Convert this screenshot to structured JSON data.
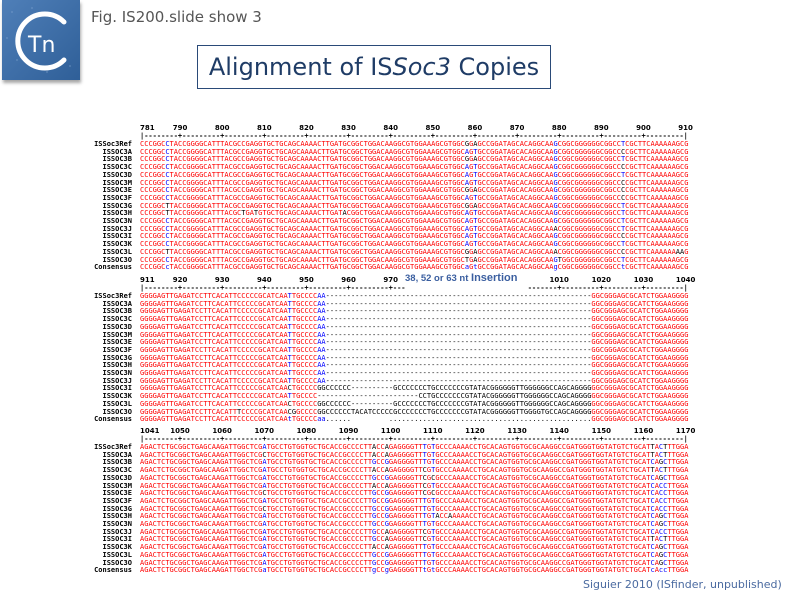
{
  "header": {
    "logo_text": "Tn",
    "fig_label": "Fig. IS200.slide show 3",
    "title_prefix": "Alignment of IS",
    "title_italic": "Soc3",
    "title_suffix": " Copies"
  },
  "colors": {
    "high_consensus": "#ff0000",
    "low_consensus": "#0000ff",
    "neutral": "#000000",
    "title": "#1f3c66",
    "footer": "#4a6aa0"
  },
  "sequence_names": [
    "ISSoc3Ref",
    "ISSOC3A",
    "ISSOC3B",
    "ISSOC3C",
    "ISSOC3D",
    "ISSOC3M",
    "ISSOC3E",
    "ISSOC3F",
    "ISSOC3G",
    "ISSOC3H",
    "ISSOC3N",
    "ISSOC3J",
    "ISSOC3I",
    "ISSOC3K",
    "ISSOC3L",
    "ISSOC3O"
  ],
  "consensus_label": "Consensus",
  "blocks": [
    {
      "start": 781,
      "end": 910,
      "ticks": [
        781,
        790,
        800,
        810,
        820,
        830,
        840,
        850,
        860,
        870,
        880,
        890,
        900,
        910
      ],
      "sequences": [
        "CCCGGCCTACCGGGGCATTTACGCCGAGGTGCTGCAGCAAAACTTGATGCGGCTGGACAAGGCGTGGAAAGCGTGGCGGAGCCGGATAGCACAGGCAAGCGGCGGGGGGCGGCCTCGCTTCAAAAAAGCG",
        "CCCGGCCTACCGGGGCATTTACGCCGAGGTGCTGCAGCAAAACTTGATGCGGCTGGACAAGGCGTGGAAAGCGTGGCAGTGCCGGATAGCACAGGCAAGCGGCGGGGGGCGGCCCCGCTTCAAAAAAGCG",
        "CCCGGCCTACCGGGGCATTTACGCCGAGGTGCTGCAGCAAAACTTGATGCGGCTGGACAAGGCGTGGAAAGCGTGGCGGAGCCGGATAGCACAGGCAAGCGGCGGGGGGCGGCCTCGCTTCAAAAAAGCG",
        "CCCGGCCTACCGGGGCATTTACGCCGAGGTGCTGCAGCAAAACTTGATGCGGCTGGACAAGGCGTGGAAAGCGTGGCAGTGCCGGATAGCACAGGCAAGCGGCGGGGGGCGGCCCCGCTTCAAAAAAGCG",
        "CCCGGCCTACCGGGGCATTTACGCCGAGGTGCTGCAGCAAAACTTGATGCGGCTGGACAAGGCGTGGAAAGCGTGGCAGTGCCGGATAGCACAGGCAAGCGGCGGGGGGCGGCCTCGCTTCAAAAAAGCG",
        "CCCGGCCTACCGGGGCATTTACGCCGAGGTGCTGCAGCAAAACTTGATGCGGCTGGACAAGGCGTGGAAAGCGTGGCAGTGCCGGATAGCACAGGCAAGCGGCGGGGGGCGGCCCCGCTTCAAAAAAGCG",
        "CCCGGCCTACCGGGGCATTTACGCCGAGGTGCTGCAGCAAAACTTGATGCGGCTGGACAAGGCGTGGAAAGCGTGGCGGAGCCGGATAGCACAGGCAAGCGGCGGGGGGCGGCCCCGCTTCAAAAAAGCG",
        "CCCGGCCTACCGGGGCATTTACGCCGAGGTGCTGCAGCAAAACTTGATGCGGCTGGACAAGGCGTGGAAAGCGTGGCAGTGCCGGATAGCACAGGCAAGCGGCGGGGGGCGGCCCCGCTTCAAAAAAGCG",
        "CCCGGCTTACCGGGGCATTTACGCCGAGGTGCTGCAGCAAAACTTGATGCGGCTGGACAAGGCGTGGAAAGCGTGGCGGAGCCGGATAGCACAGGCAAGCGGCGGGGGGCGGCCTCGCTTCAAAAAAGCG",
        "CCCGGCTTACCGGGGCATTTACGCTGATGTGCTGCAGCAAAACTTGATACGGCTGGACAAGGCGTGGAAAGCGTGGCAGTGCCGGATAGCACAGGCAAGCGGCGGGGGGCGGCCTCGCTTCAAAAAAGCG",
        "CCCGGCCTACCGGGGCATTTACGCCGAGGTGCTGCAGCAAAACTTGATGCGGCTGGACAAGGCGTGGAAAGCGTGGCAGTGCCGGATAGCACAGGCAAGCGGCGGGGGGCGGCCTCGCTTCAAAAAAGCG",
        "CCCGGCCTACCGGGGCATTTACGCCGAGGTGCTGCAGCAAAACTTGATGCGGCTGGACAAGGCGTGGAAAGCGTGGCAGTGCCGGATAGCACAGGCAAACGGCGGGGGGCGGCCTCGCTTCAAAAAAGCG",
        "CCCGGCCTACCGGGGCATTTACGCCGAGGTGCTGCAGCAAAACTTGATGCGGCTGGACAAGGCGTGGAAAGCGTGGCAGTGCCGGATAGCACAGGCAAGCGGCGGGGGGCGGCCCCGCTTCAAAAAAGCG",
        "CCCGGCCTACCGGGGCATTTACGCCGAGGTGCTGCAGCAAAACTTGATGCGGCTGGACAAGGCGTGGAAAGCGTGGCAGTGCCGGATAGCACAGGCAAGCGGCGGGGGGCGGCCTCGCTTCAAAAAAGCG",
        "CCCGGCTTACCGGGGCATTTACGCCGAGGTGCTGCAGCAAAACTTGATGCGGCTGGACAAGGCGTGGAAAGCGTGGCGGAGCCGGATAGCACAGGCAAACGGCGGGGGGCGGCCCCGCTTCAAAAAAAAG",
        "CCCGGCCTACCGGGGCATTTACGCCGAGGTGCTGCAGCAAAACTTGATGCGGCTGGACAAGGCGTGGAAAGCGTGGCTGAGCCGGATAGCACAGGCAAGTGGCGGGGGGCGGCCTCGCTTCAAAAAAGCG"
      ],
      "consensus": "CCCGGCcTACCGGGGCATTTACGCCGAGGTGCTGCAGCAAAACTTGATGCGGCTGGACAAGGCGTGGAAAGCGTGGCaGtGCCGGATAGCACAGGCAAgCGGCGGGGGGCGGCCtCGCTTCAAAAAAGCG"
    },
    {
      "start": 911,
      "end": 1040,
      "ticks": [
        911,
        920,
        930,
        940,
        950,
        960,
        970,
        1010,
        1020,
        1030,
        1040
      ],
      "ruler_gap": [
        974,
        1002
      ],
      "annotation": {
        "count_text": "38, 52 or 63 nt ",
        "word": "Insertion"
      },
      "sequences": [
        "GGGGAGTTGAGATCCTTCACATTCCCCCGCATCAATTGCCCCAA---------------------------------------------------------------GGCGGGAGCGCATCTGGAAGGGG",
        "GGGGAGTTGAGATCCTTCACATTCCCCCGCATCAATTGCCCCAA---------------------------------------------------------------GGCGGGAGCGCATCTGGAAGGGG",
        "GGGGAGTTGAGATCCTTCACATTCCCCCGCATCAATTGCCCCAA---------------------------------------------------------------GGCGGGAGCGCATCTGGAAGGGG",
        "GGGGAGTTGAGATCCTTCACATTCCCCCGCATCAATTGCCCCAA---------------------------------------------------------------GGCGGGAGCGCATCTGGAAGGGG",
        "GGGGAGTTGAGATCCTTCACATTCCCCCGCATCAATTGCCCCAA---------------------------------------------------------------GGCGGGAGCGCATCTGGAAGGGG",
        "GGGGAGTTGAGATCCTTCACATTCCCCCGCATCAATTGCCCCAA---------------------------------------------------------------GGCGGGAGCGCATCTGGAAGGGG",
        "GGGGAGTTGAGATCCTTCACATTCCCCCGCATCAATTGCCCCAA---------------------------------------------------------------GGCGGGAGCGCATCTGGAAGGGG",
        "GGGGAGTTGAGATCCTTCACATTCCCCCGCATCAATTGCCCCAA---------------------------------------------------------------GGCGGGAGCGCATCTGGAAGGGG",
        "GGGGAGTTGAGATCCTTCACATTCCCCCGCATCAATTGCCCCAA---------------------------------------------------------------GGCGGGAGCGCATCTGGAAGGGG",
        "GGGGAGTTGAGATCCTTCACATTCCCCCGCATCAATTGCCCCAA---------------------------------------------------------------GGCGGGAGCGCATCTGGAAGGGG",
        "GGGGAGTTGAGATCCTTCACATTCCCCCGCATCAATTGCCCCAA---------------------------------------------------------------GGCGGGAGCGCATCTGGAAGGGG",
        "GGGGAGTTGAGATCCTTCACATTCCCCCGCATCAATTGCCCCAA---------------------------------------------------------------GGCGGGAGCGCATCTGGAAGGGG",
        "GGGGAGTTGAGATCCTTCACATTCCCCCGCATCAACTGCCCCGGCCCCCC----------GCCCCCCCTGCCCCCCCGTATACGGGGGGTTGGGGGGCCAGCAGGGGGGCGGGAGCGCATCTGGAAGGGG",
        "GGGGAGTTGAGATCCTTCACATTCCCCCGCATCAATTGCCCC------------------------CCTGCCCCCCCGTATACGGGGGGTTGGGGGGCCAGCAGGGGGGCGGGAGCGCATCTGGAAGGGG",
        "GGGGAGTTGAGATCCTTCACATTCCCCCGCATCAACTGCCCCGGCCCCCC----------GCCCCCCCTGCCCCCCCGTATACGGGGGGTTGGGGGGCCAGCAGGGGGGCGGGAGCGCATCTGGAAGGGG",
        "GGGGAGTTGAGATCCTTCACATTTCCCCGCATCAACGGCCCCGGCCCCCCTACATCCCCCGCCCCCCCTGCCCCCCCGTATACGGGGGGTTGGGGTGCCAGCAGGGGGGCGGGAGCGCATCTGGAAGGGG"
      ],
      "consensus": "GGGGAGTTGAGATCCTTCACATTCCCCCGCATCAAtTGCCCCaa......         ................................................GGCGGGAGCGCATCTGGAAGGGG"
    },
    {
      "start": 1041,
      "end": 1170,
      "ticks": [
        1041,
        1050,
        1060,
        1070,
        1080,
        1090,
        1100,
        1110,
        1120,
        1130,
        1140,
        1150,
        1160,
        1170
      ],
      "sequences": [
        "AGACTCTGCGGCTGAGCAAGATTGGCTCGATGCCTGTGGTGCTGCACCGCCCCTTACCAGAGGGGTTTGTGCCCAAAACCTGCACAGTGGTGCGCAAGGCCGATGGGTGGTATGTCTGCATTACTTTGGA",
        "AGACTCTGCGGCTGAGCAAGATTGGCTCGCTGCCTGTGGTGCTGCACCGCCCCTTACCAGAGGGGTTTGTGCCCAAAACCTGCACAGTGGTGCGCAAGGCCGATGGGTGGTATGTCTGCATTACTTTGGA",
        "AGACTCTGCGGCTGAGCAAGATTGGCTCGATGCCTGTGGTGCTGCACCGCCCCTTGCCGGAGGGGTTTGTGCCCAAAACCTGCACAGTGGTGCGCAAGGCCGATGGGTGGTATGTCTGCATCAGCTTGGA",
        "AGACTCTGCGGCTGAGCAAGATTGGCTCGATGCCTGTGGTGCTGCACCGCCCCTTACCAGAGGGGTTCGTGCCCAAAACCTGCACAGTGGTGCGCAAGGCCGATGGGTGGTATGTCTGCATTACTTTGGA",
        "AGACTCTGCGGCTGAGCAAGATTGGCTCGATGCCTGTGGTGCTGCACCGCCCCTTGCCGGAGGGGTTCGCGCCCAAAACCTGCACAGTGGTGCGCAAGGCCGATGGGTGGTATGTCTGCATCAGCTTGGA",
        "AGACTCTGCGGCTGAGCAAGATTGGCTCGATGCCTGTGGTGCTGCACCGCCCCTTACCAGAGGGGTTCGTGCCCAAAACCTGCACAGTGGTGCGCAAGGCCGATGGGTGGTATGTCTGCATCACCTTGGA",
        "AGACTCTGCGGCTGAGCAAGATTGGCTCGCTGCCTGTGGTGCTGCACCGCCCCTTGCCGGAGGGGTTCGCGCCCAAAACCTGCACAGTGGTGCGCAAGGCCGATGGGTGGTATGTCTGCATCACCTTGGA",
        "AGACTCTGCGGCTGAGCAAGATTGGCTCGATGCCTGTGGTGCTGCACCGCCCCTTGCCGGAGGGGTTTGTGCCCAAAACCTGCACAGTGGTGCGCAAGGCCGATGGGTGGTATGTCTGCATCACCTTGGA",
        "AGACTCTGCGGCTGAGCAAGATTGGCTCGCTGCCTGTGGTGCTGCACCGCCCCTTGCCGGAGGGGTTTGTGCCCAAAACCTGCACAGTGGTGCGCAAGGCCGATGGGTGGTATGTCTGCATCACCTTGGA",
        "AGACTCTGCGGCTGAGCAAGATTGGCTCGATGCCTGTGGTGCTGCACCGCCCCTTGCCGGAGGGGTTTGTACCAAAAACCTGCACAGTGGTGCGCAAGGCCGATGGGTGGTATGTCTGCATCAGCTTGGA",
        "AGACTCTGCGGCTGAGCAAGATTGGCTCGATGCCTGTGGTGCTGCACCGCCCCTTGCCGGAGGGGTTTGTGCCCAAAACCTGCACAGTGGTGCGCAAGGCCGATGGGTGGTATGTCTGCATCAGCTTGGA",
        "AGACTCTGCGGCTGAGCAAGATTGGCTCGATGCCTGTGGTGCTGCACCGCCCCTTGCCAGAGGGGTTCGTGCCCAAAACCTGCACAGTGGTGCGCAAGGCCGATGGGTGGTATGTCTGCATCACCTTGGA",
        "AGACTCTGCGGCTGAGCAAGATTGGCTCGATGCCTGTGGTGCTGCACCGCCCCTTGCCAGAGGGGTTCGTGCCCAAAACCTGCACAGTGGTGCGCAAGGCCGATGGGTGGTATGTCTGCATTACTTTGGA",
        "AGACTCTGCGGCTGAGCAAGATTGGCTCGATGCCTGTGGTGCTGCACCGCCCCTTACCAGAGGGGTTTGTGCCCAAAACCTGCACAGTGGTGCGCAAGGCCGATGGGTGGTATGTCTGCATCAGCTTGGA",
        "AGACTCTGCGGCTGAGCAAGATTGGCTCGATGCCTGTGGTGCTGCACCGCCCCTTGCCGGAGGGGTTTGTGCCCAAAACCTGCACAGTGGTGCGCAAGGCCGATGGGTGGTATGTCTGCATCAGCTTGGA",
        "AGACTCTGCGGCTGAGCAAGATTGGCTCGATGCCTGTGGTGCTGCACCGCCCCTTGCCGGAGGGGTTTGTGCCCAAAACCTGCACAGTGGTGCGCAAGGCCGATGGGTGGTATGTCTGCATCAGCTTGGA"
      ],
      "consensus": "AGACTCTGCGGCTGAGCAAGATTGGCTCGaTGCCTGTGGTGCTGCACCGCCCCTTgCCgGAGGGGTTtGtGCCCAAAACCTGCACAGTGGTGCGCAAGGCCGATGGGTGGTATGTCTGCATcAccTTGGA"
    }
  ],
  "footer": "Siguier 2010 (ISfinder, unpublished)"
}
